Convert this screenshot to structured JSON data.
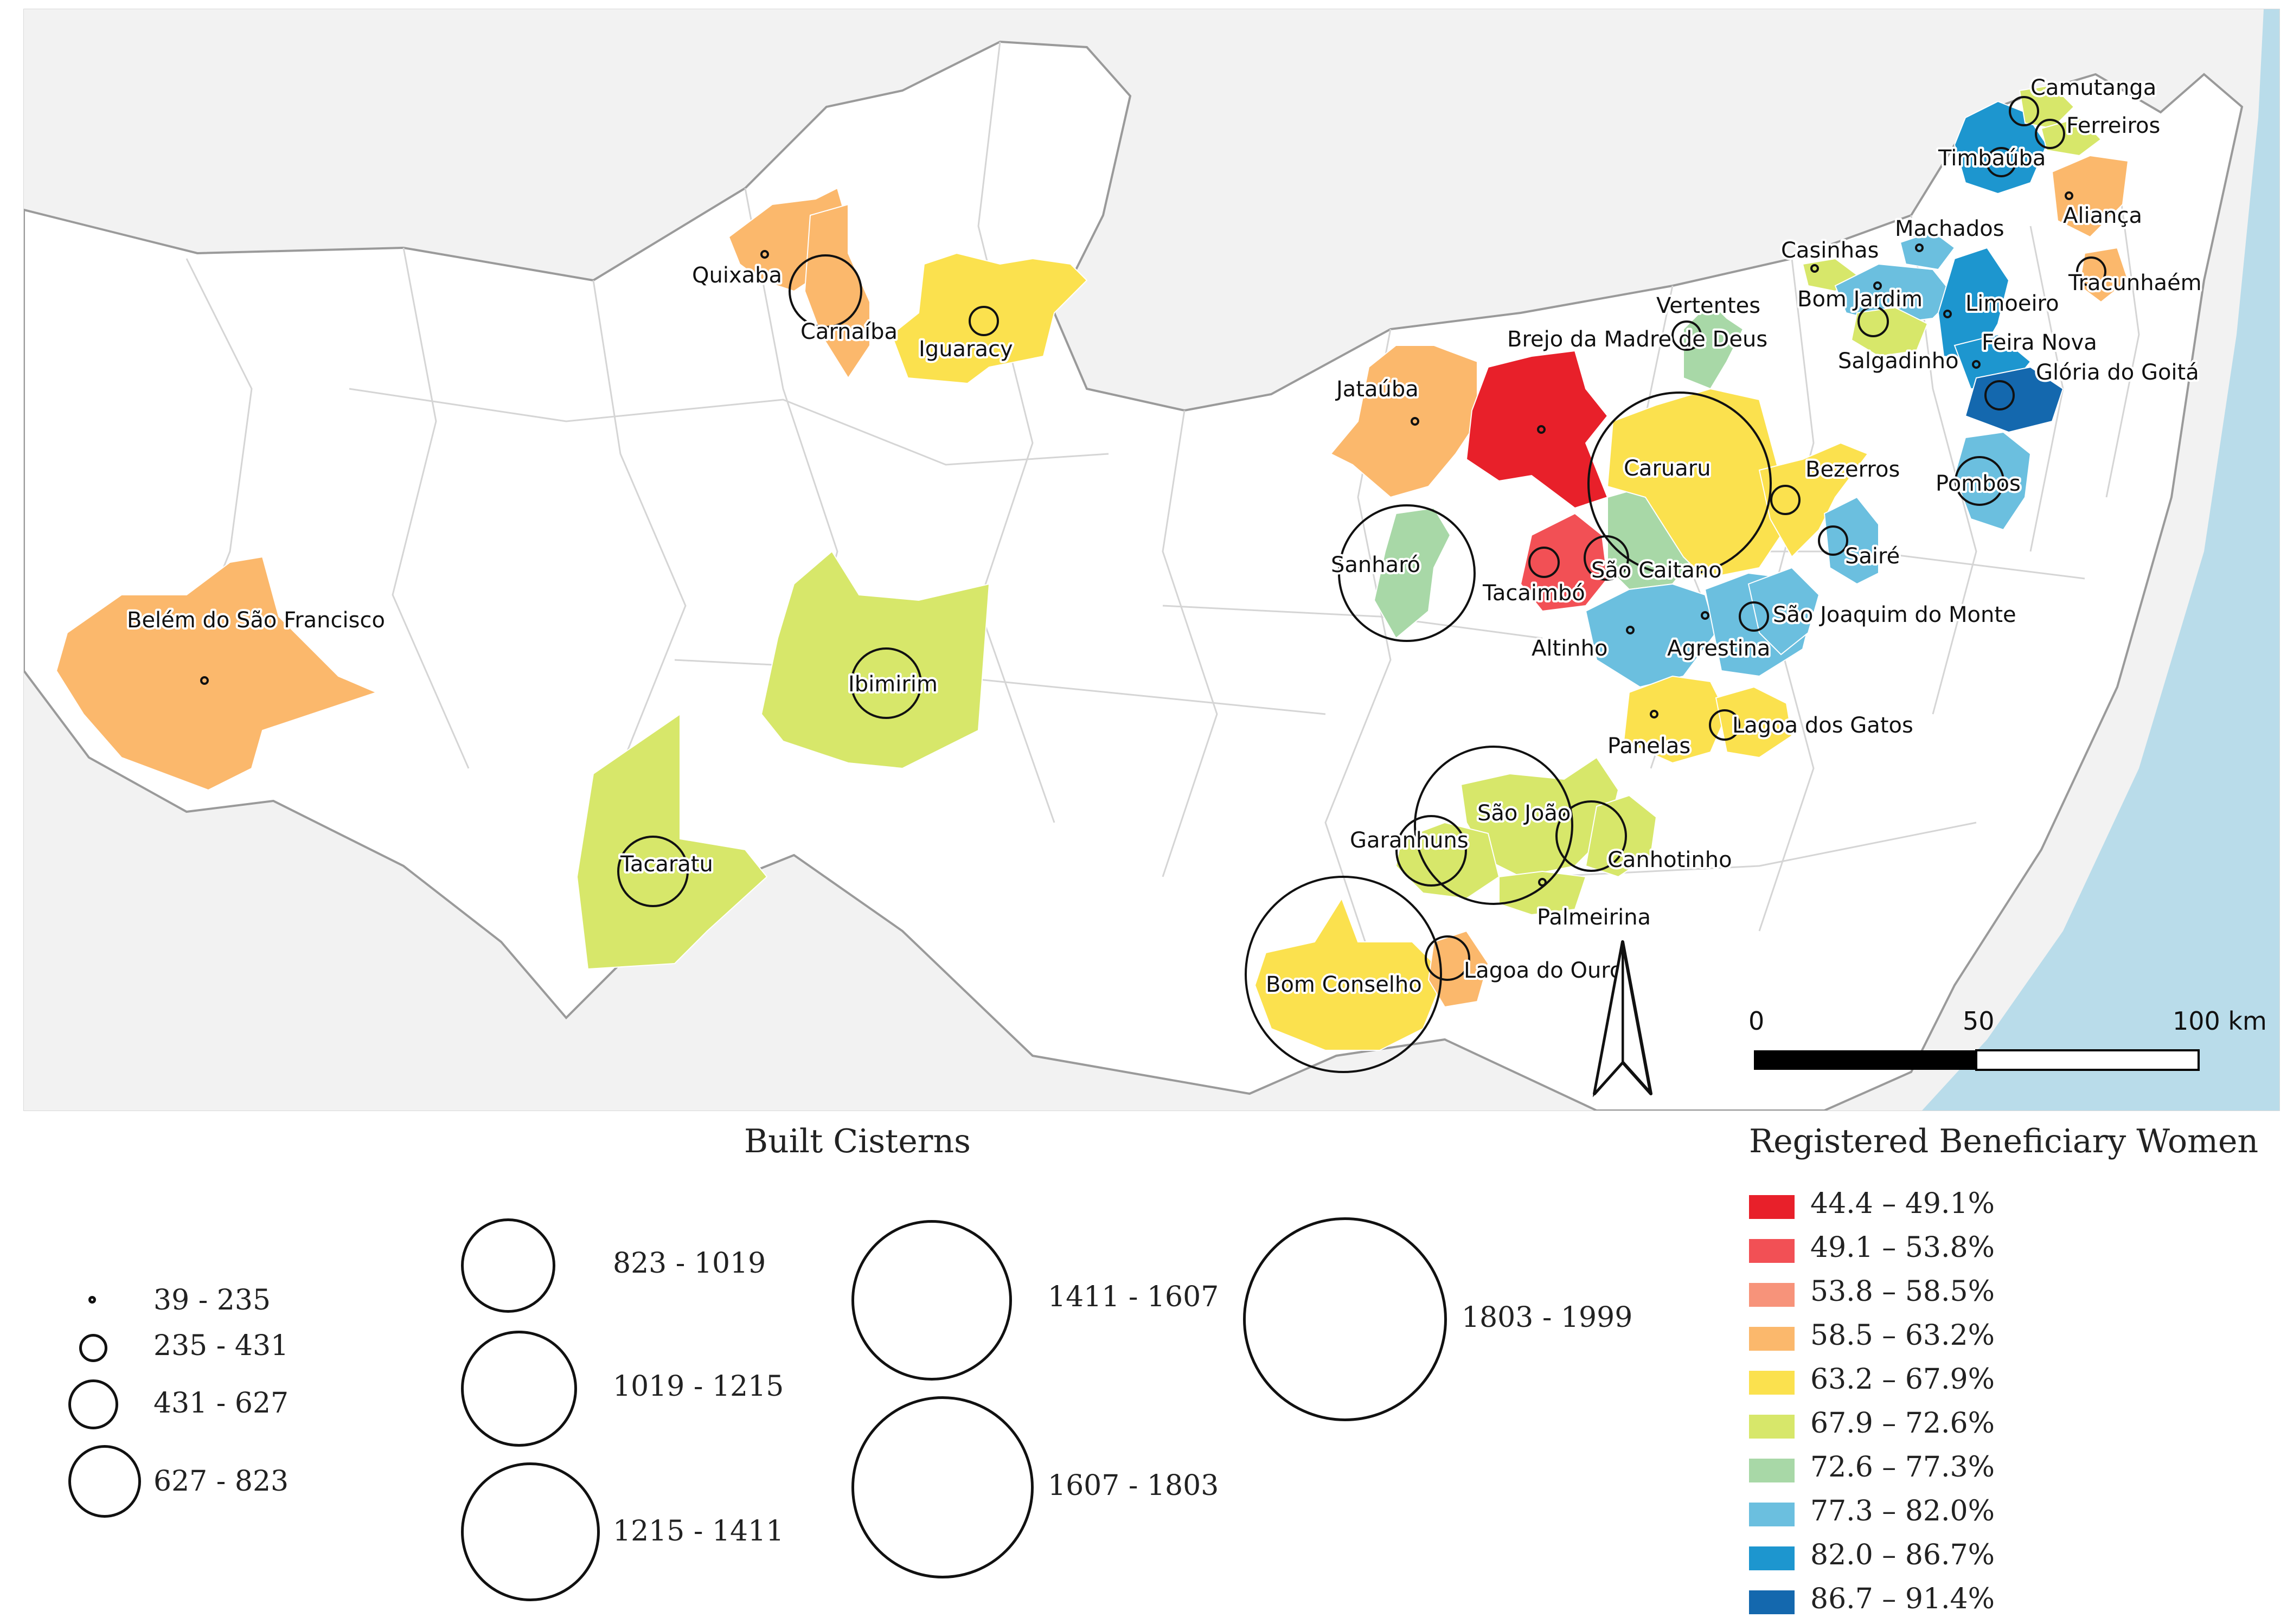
{
  "map": {
    "places": [
      {
        "name": "Camutanga",
        "cls": "c7"
      },
      {
        "name": "Ferreiros",
        "cls": "c5"
      },
      {
        "name": "Timbaúba",
        "cls": "c8"
      },
      {
        "name": "Aliança",
        "cls": "c3"
      },
      {
        "name": "Machados",
        "cls": "c6"
      },
      {
        "name": "Casinhas",
        "cls": "c5"
      },
      {
        "name": "Tracunhaém",
        "cls": "c3"
      },
      {
        "name": "Bom Jardim",
        "cls": "c7"
      },
      {
        "name": "Limoeiro",
        "cls": "c8"
      },
      {
        "name": "Vertentes",
        "cls": "c6"
      },
      {
        "name": "Quixaba",
        "cls": "c3"
      },
      {
        "name": "Feira Nova",
        "cls": "c8"
      },
      {
        "name": "Carnaíba",
        "cls": "c3"
      },
      {
        "name": "Iguaracy",
        "cls": "c4"
      },
      {
        "name": "Salgadinho",
        "cls": "c5"
      },
      {
        "name": "Glória do Goitá",
        "cls": "c9"
      },
      {
        "name": "Brejo da Madre de Deus",
        "cls": "c0"
      },
      {
        "name": "Jataúba",
        "cls": "c3"
      },
      {
        "name": "Caruaru",
        "cls": "c4"
      },
      {
        "name": "Bezerros",
        "cls": "c4"
      },
      {
        "name": "Pombos",
        "cls": "c7"
      },
      {
        "name": "Sanharó",
        "cls": "c6"
      },
      {
        "name": "Sairé",
        "cls": "c7"
      },
      {
        "name": "Tacaimbó",
        "cls": "c1"
      },
      {
        "name": "São Caitano",
        "cls": "c6"
      },
      {
        "name": "Belém do São Francisco",
        "cls": "c3"
      },
      {
        "name": "São Joaquim do Monte",
        "cls": "c7"
      },
      {
        "name": "Altinho",
        "cls": "c7"
      },
      {
        "name": "Agrestina",
        "cls": "c7"
      },
      {
        "name": "Ibimirim",
        "cls": "c5"
      },
      {
        "name": "Lagoa dos Gatos",
        "cls": "c4"
      },
      {
        "name": "Panelas",
        "cls": "c4"
      },
      {
        "name": "São João",
        "cls": "c5"
      },
      {
        "name": "Garanhuns",
        "cls": "c5"
      },
      {
        "name": "Canhotinho",
        "cls": "c5"
      },
      {
        "name": "Tacaratu",
        "cls": "c5"
      },
      {
        "name": "Palmeirina",
        "cls": "c5"
      },
      {
        "name": "Lagoa do Ouro",
        "cls": "c3"
      },
      {
        "name": "Bom Conselho",
        "cls": "c4"
      }
    ],
    "scale_bar": {
      "labels": [
        "0",
        "50",
        "100 km"
      ]
    },
    "north_arrow_icon": "north-arrow-icon",
    "sea_color": "#b9dcea"
  },
  "legend_cisterns": {
    "title": "Built Cisterns",
    "classes": [
      "39 - 235",
      "235 - 431",
      "431 - 627",
      "627 - 823",
      "823 - 1019",
      "1019 - 1215",
      "1215 - 1411",
      "1411 - 1607",
      "1607 - 1803",
      "1803 - 1999"
    ]
  },
  "legend_women": {
    "title": "Registered Beneficiary Women",
    "classes": [
      {
        "label": "44.4 – 49.1%",
        "color": "#e8202a"
      },
      {
        "label": "49.1 – 53.8%",
        "color": "#f25055"
      },
      {
        "label": "53.8 – 58.5%",
        "color": "#f7937a"
      },
      {
        "label": "58.5 – 63.2%",
        "color": "#fbb86c"
      },
      {
        "label": "63.2 – 67.9%",
        "color": "#fbe14e"
      },
      {
        "label": "67.9 – 72.6%",
        "color": "#d7e76a"
      },
      {
        "label": "72.6 – 77.3%",
        "color": "#a8d8a7"
      },
      {
        "label": "77.3 – 82.0%",
        "color": "#6bbfdf"
      },
      {
        "label": "82.0 – 86.7%",
        "color": "#1d96cf"
      },
      {
        "label": "86.7 – 91.4%",
        "color": "#1468ae"
      }
    ]
  }
}
